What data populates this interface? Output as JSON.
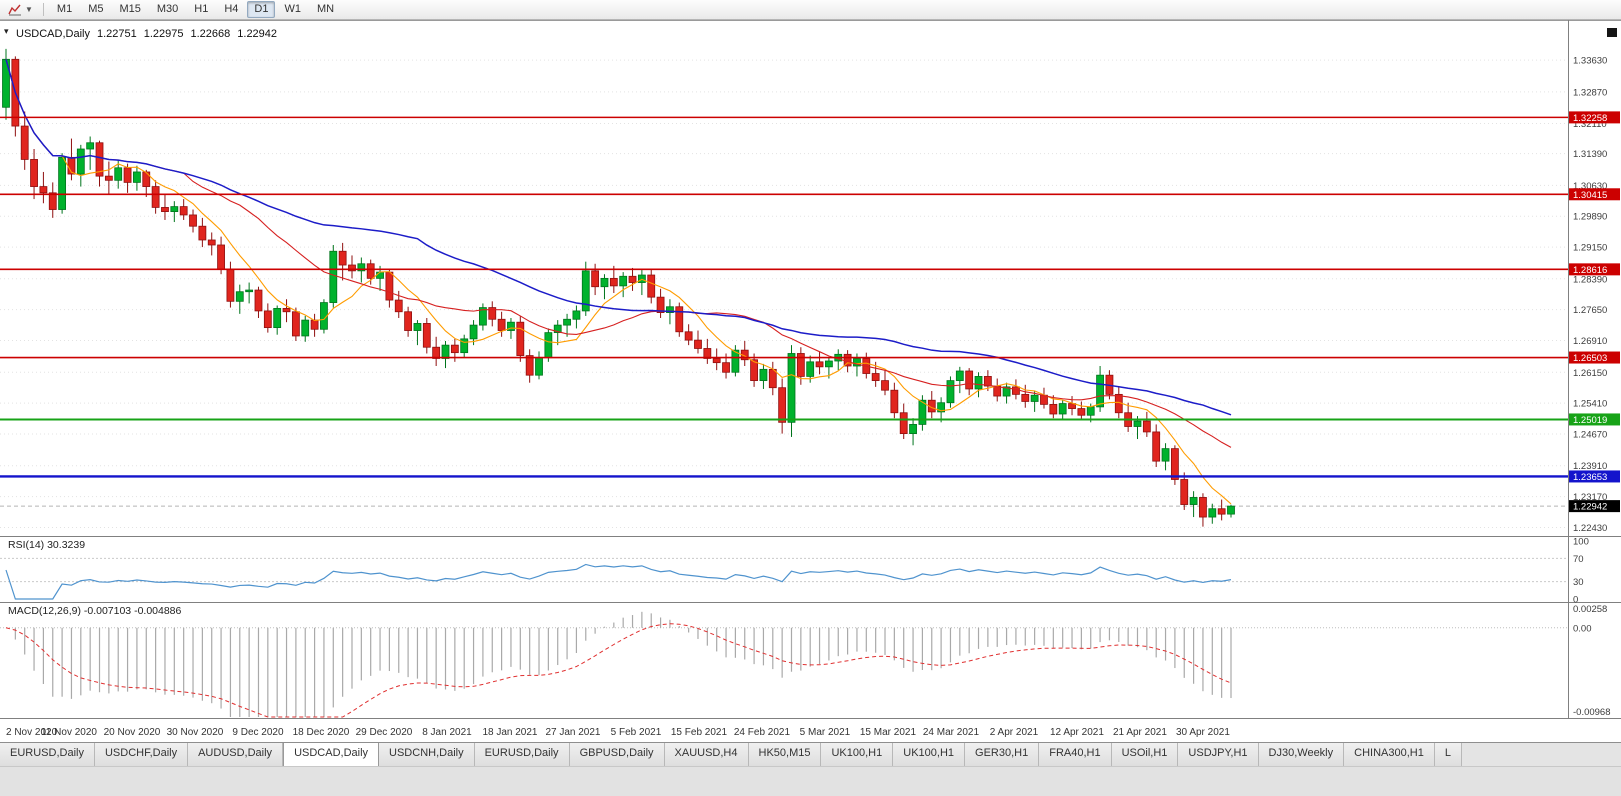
{
  "toolbar": {
    "timeframes": [
      "M1",
      "M5",
      "M15",
      "M30",
      "H1",
      "H4",
      "D1",
      "W1",
      "MN"
    ],
    "active": "D1"
  },
  "chart": {
    "symbol_title": "USDCAD,Daily",
    "ohlc": {
      "open": "1.22751",
      "high": "1.22975",
      "low": "1.22668",
      "close": "1.22942"
    }
  },
  "chart_data": {
    "type": "candlestick",
    "symbol": "USDCAD",
    "period": "Daily",
    "title": "USDCAD,Daily 1.22751 1.22975 1.22668 1.22942",
    "price_range": {
      "min": 1.2225,
      "max": 1.344
    },
    "y_ticks": [
      "1.33630",
      "1.32870",
      "1.32110",
      "1.31390",
      "1.30630",
      "1.29890",
      "1.29150",
      "1.28390",
      "1.27650",
      "1.26910",
      "1.26150",
      "1.25410",
      "1.24670",
      "1.23910",
      "1.23170",
      "1.22430"
    ],
    "x_labels": [
      "2 Nov 2020",
      "11 Nov 2020",
      "20 Nov 2020",
      "30 Nov 2020",
      "9 Dec 2020",
      "18 Dec 2020",
      "29 Dec 2020",
      "8 Jan 2021",
      "18 Jan 2021",
      "27 Jan 2021",
      "5 Feb 2021",
      "15 Feb 2021",
      "24 Feb 2021",
      "5 Mar 2021",
      "15 Mar 2021",
      "24 Mar 2021",
      "2 Apr 2021",
      "12 Apr 2021",
      "21 Apr 2021",
      "30 Apr 2021"
    ],
    "hlines": [
      {
        "price": 1.32258,
        "label": "1.32258",
        "color": "#cc0000",
        "width": 1.6
      },
      {
        "price": 1.30415,
        "label": "1.30415",
        "color": "#cc0000",
        "width": 1.6
      },
      {
        "price": 1.28616,
        "label": "1.28616",
        "color": "#cc0000",
        "width": 1.6
      },
      {
        "price": 1.26503,
        "label": "1.26503",
        "color": "#cc0000",
        "width": 1.6
      },
      {
        "price": 1.25019,
        "label": "1.25019",
        "color": "#17a317",
        "width": 2
      },
      {
        "price": 1.23653,
        "label": "1.23653",
        "color": "#1414cc",
        "width": 2.4
      }
    ],
    "current_price": {
      "value": 1.22942,
      "label": "1.22942"
    },
    "moving_averages": [
      {
        "name": "fast-ma",
        "period": 7,
        "color": "#ff9c00",
        "width": 1.1
      },
      {
        "name": "mid-ma",
        "period": 20,
        "color": "#d62020",
        "width": 1.1
      },
      {
        "name": "slow-ma",
        "period": 45,
        "color": "#1c1cc8",
        "width": 1.5
      }
    ],
    "indicators": [
      {
        "type": "rsi",
        "label": "RSI(14) 30.3239",
        "period": 14,
        "current": 30.3239,
        "levels": [
          100,
          70,
          30,
          0
        ],
        "color": "#4f93ce"
      },
      {
        "type": "macd",
        "label": "MACD(12,26,9) -0.007103 -0.004886",
        "fast": 12,
        "slow": 26,
        "signal": 9,
        "macd_value": -0.007103,
        "signal_value": -0.004886,
        "scale_labels": [
          "0.00258",
          "0.00",
          "-0.00968"
        ],
        "range": {
          "min": -0.00968,
          "max": 0.00258
        }
      }
    ],
    "colors": {
      "bull": "#00b22d",
      "bear": "#e0251e",
      "wick_bull": "#00741c",
      "wick_bear": "#8f0f0f",
      "grid": "#e3e3e3",
      "axis_text": "#3c3c3c",
      "macd_bar": "#a9a9a9",
      "macd_signal": "#e03030",
      "current_price_bg": "#000000",
      "current_price_line": "#b5b5b5"
    },
    "candles": [
      [
        1.325,
        1.339,
        1.322,
        1.3365
      ],
      [
        1.3365,
        1.3372,
        1.318,
        1.3205
      ],
      [
        1.3205,
        1.324,
        1.31,
        1.3125
      ],
      [
        1.3125,
        1.315,
        1.303,
        1.306
      ],
      [
        1.306,
        1.3095,
        1.302,
        1.3045
      ],
      [
        1.3045,
        1.307,
        1.2985,
        1.3005
      ],
      [
        1.3005,
        1.314,
        1.2995,
        1.313
      ],
      [
        1.313,
        1.3175,
        1.3075,
        1.309
      ],
      [
        1.309,
        1.316,
        1.306,
        1.315
      ],
      [
        1.315,
        1.318,
        1.31,
        1.3165
      ],
      [
        1.3165,
        1.317,
        1.306,
        1.3085
      ],
      [
        1.3085,
        1.312,
        1.304,
        1.3075
      ],
      [
        1.3075,
        1.3125,
        1.3055,
        1.3105
      ],
      [
        1.3105,
        1.3115,
        1.3045,
        1.307
      ],
      [
        1.307,
        1.311,
        1.305,
        1.3095
      ],
      [
        1.3095,
        1.31,
        1.3035,
        1.306
      ],
      [
        1.306,
        1.3075,
        1.2995,
        1.301
      ],
      [
        1.301,
        1.304,
        1.298,
        1.3
      ],
      [
        1.3,
        1.3025,
        1.2975,
        1.3012
      ],
      [
        1.3012,
        1.303,
        1.298,
        1.2992
      ],
      [
        1.2992,
        1.3005,
        1.295,
        1.2965
      ],
      [
        1.2965,
        1.2985,
        1.2915,
        1.2932
      ],
      [
        1.2932,
        1.295,
        1.2895,
        1.292
      ],
      [
        1.292,
        1.294,
        1.285,
        1.2862
      ],
      [
        1.2862,
        1.288,
        1.277,
        1.2785
      ],
      [
        1.2785,
        1.2825,
        1.2755,
        1.2808
      ],
      [
        1.2808,
        1.283,
        1.278,
        1.2812
      ],
      [
        1.2812,
        1.282,
        1.2745,
        1.2762
      ],
      [
        1.2762,
        1.278,
        1.271,
        1.2722
      ],
      [
        1.2722,
        1.2775,
        1.2705,
        1.2768
      ],
      [
        1.2768,
        1.279,
        1.2735,
        1.276
      ],
      [
        1.276,
        1.277,
        1.269,
        1.2702
      ],
      [
        1.2702,
        1.275,
        1.2688,
        1.274
      ],
      [
        1.274,
        1.2755,
        1.27,
        1.2718
      ],
      [
        1.2718,
        1.279,
        1.2708,
        1.2782
      ],
      [
        1.2782,
        1.292,
        1.277,
        1.2905
      ],
      [
        1.2905,
        1.2925,
        1.2835,
        1.2872
      ],
      [
        1.2872,
        1.2895,
        1.284,
        1.2858
      ],
      [
        1.2858,
        1.289,
        1.283,
        1.2875
      ],
      [
        1.2875,
        1.2885,
        1.2825,
        1.284
      ],
      [
        1.284,
        1.287,
        1.281,
        1.2855
      ],
      [
        1.2855,
        1.2862,
        1.277,
        1.2788
      ],
      [
        1.2788,
        1.281,
        1.2745,
        1.276
      ],
      [
        1.276,
        1.2772,
        1.27,
        1.2715
      ],
      [
        1.2715,
        1.274,
        1.268,
        1.2732
      ],
      [
        1.2732,
        1.2745,
        1.266,
        1.2675
      ],
      [
        1.2675,
        1.27,
        1.263,
        1.2648
      ],
      [
        1.2648,
        1.269,
        1.2625,
        1.268
      ],
      [
        1.268,
        1.2695,
        1.264,
        1.2662
      ],
      [
        1.2662,
        1.2705,
        1.265,
        1.2695
      ],
      [
        1.2695,
        1.274,
        1.268,
        1.2728
      ],
      [
        1.2728,
        1.278,
        1.2715,
        1.277
      ],
      [
        1.277,
        1.2785,
        1.2725,
        1.2742
      ],
      [
        1.2742,
        1.276,
        1.27,
        1.2715
      ],
      [
        1.2715,
        1.2745,
        1.2695,
        1.2735
      ],
      [
        1.2735,
        1.275,
        1.264,
        1.2655
      ],
      [
        1.2655,
        1.267,
        1.259,
        1.2608
      ],
      [
        1.2608,
        1.2665,
        1.2598,
        1.265
      ],
      [
        1.265,
        1.272,
        1.264,
        1.271
      ],
      [
        1.271,
        1.274,
        1.268,
        1.2728
      ],
      [
        1.2728,
        1.2755,
        1.27,
        1.2742
      ],
      [
        1.2742,
        1.2775,
        1.272,
        1.2762
      ],
      [
        1.2762,
        1.288,
        1.275,
        1.2858
      ],
      [
        1.2858,
        1.2875,
        1.28,
        1.282
      ],
      [
        1.282,
        1.285,
        1.279,
        1.284
      ],
      [
        1.284,
        1.287,
        1.2805,
        1.2822
      ],
      [
        1.2822,
        1.2855,
        1.2795,
        1.2845
      ],
      [
        1.2845,
        1.2865,
        1.281,
        1.283
      ],
      [
        1.283,
        1.286,
        1.28,
        1.2848
      ],
      [
        1.2848,
        1.2862,
        1.278,
        1.2795
      ],
      [
        1.2795,
        1.2815,
        1.2745,
        1.2758
      ],
      [
        1.2758,
        1.279,
        1.273,
        1.2772
      ],
      [
        1.2772,
        1.2782,
        1.27,
        1.2712
      ],
      [
        1.2712,
        1.273,
        1.268,
        1.2692
      ],
      [
        1.2692,
        1.2715,
        1.266,
        1.2672
      ],
      [
        1.2672,
        1.2695,
        1.2635,
        1.2648
      ],
      [
        1.2648,
        1.2672,
        1.262,
        1.2638
      ],
      [
        1.2638,
        1.266,
        1.26,
        1.2615
      ],
      [
        1.2615,
        1.268,
        1.2605,
        1.2668
      ],
      [
        1.2668,
        1.269,
        1.263,
        1.2645
      ],
      [
        1.2645,
        1.266,
        1.258,
        1.2595
      ],
      [
        1.2595,
        1.2635,
        1.2575,
        1.2622
      ],
      [
        1.2622,
        1.264,
        1.256,
        1.2578
      ],
      [
        1.2578,
        1.26,
        1.2468,
        1.2495
      ],
      [
        1.2495,
        1.268,
        1.246,
        1.266
      ],
      [
        1.266,
        1.2675,
        1.2585,
        1.2605
      ],
      [
        1.2605,
        1.2655,
        1.259,
        1.264
      ],
      [
        1.264,
        1.2665,
        1.261,
        1.2628
      ],
      [
        1.2628,
        1.265,
        1.26,
        1.2642
      ],
      [
        1.2642,
        1.267,
        1.262,
        1.2658
      ],
      [
        1.2658,
        1.2668,
        1.2615,
        1.263
      ],
      [
        1.263,
        1.266,
        1.2605,
        1.2648
      ],
      [
        1.2648,
        1.2662,
        1.26,
        1.2612
      ],
      [
        1.2612,
        1.264,
        1.258,
        1.2595
      ],
      [
        1.2595,
        1.262,
        1.256,
        1.2572
      ],
      [
        1.2572,
        1.259,
        1.2505,
        1.2518
      ],
      [
        1.2518,
        1.254,
        1.2455,
        1.2468
      ],
      [
        1.2468,
        1.2505,
        1.244,
        1.249
      ],
      [
        1.249,
        1.256,
        1.2475,
        1.2548
      ],
      [
        1.2548,
        1.257,
        1.2505,
        1.252
      ],
      [
        1.252,
        1.2555,
        1.2495,
        1.2542
      ],
      [
        1.2542,
        1.2605,
        1.253,
        1.2595
      ],
      [
        1.2595,
        1.2628,
        1.2565,
        1.2618
      ],
      [
        1.2618,
        1.2625,
        1.256,
        1.2575
      ],
      [
        1.2575,
        1.2615,
        1.2555,
        1.2605
      ],
      [
        1.2605,
        1.262,
        1.257,
        1.2582
      ],
      [
        1.2582,
        1.26,
        1.2545,
        1.2558
      ],
      [
        1.2558,
        1.259,
        1.254,
        1.258
      ],
      [
        1.258,
        1.2598,
        1.255,
        1.2562
      ],
      [
        1.2562,
        1.2585,
        1.253,
        1.2545
      ],
      [
        1.2545,
        1.257,
        1.252,
        1.256
      ],
      [
        1.256,
        1.2578,
        1.2528,
        1.2538
      ],
      [
        1.2538,
        1.256,
        1.2505,
        1.2515
      ],
      [
        1.2515,
        1.2548,
        1.25,
        1.254
      ],
      [
        1.254,
        1.2558,
        1.2512,
        1.2528
      ],
      [
        1.2528,
        1.2545,
        1.25,
        1.2512
      ],
      [
        1.2512,
        1.254,
        1.2495,
        1.2532
      ],
      [
        1.2532,
        1.263,
        1.252,
        1.2608
      ],
      [
        1.2608,
        1.262,
        1.255,
        1.2562
      ],
      [
        1.2562,
        1.258,
        1.2505,
        1.2518
      ],
      [
        1.2518,
        1.2542,
        1.2472,
        1.2485
      ],
      [
        1.2485,
        1.251,
        1.2455,
        1.2498
      ],
      [
        1.2498,
        1.252,
        1.246,
        1.2472
      ],
      [
        1.2472,
        1.249,
        1.2388,
        1.2402
      ],
      [
        1.2402,
        1.2445,
        1.238,
        1.2432
      ],
      [
        1.2432,
        1.244,
        1.2345,
        1.2358
      ],
      [
        1.2358,
        1.2375,
        1.2285,
        1.2298
      ],
      [
        1.2298,
        1.233,
        1.2268,
        1.2315
      ],
      [
        1.2315,
        1.2325,
        1.2245,
        1.2268
      ],
      [
        1.2268,
        1.23,
        1.2252,
        1.2288
      ],
      [
        1.2288,
        1.231,
        1.226,
        1.2275
      ],
      [
        1.22751,
        1.22975,
        1.22668,
        1.22942
      ]
    ]
  },
  "tabs": {
    "items": [
      "EURUSD,Daily",
      "USDCHF,Daily",
      "AUDUSD,Daily",
      "USDCAD,Daily",
      "USDCNH,Daily",
      "EURUSD,Daily",
      "GBPUSD,Daily",
      "XAUUSD,H4",
      "HK50,M15",
      "UK100,H1",
      "UK100,H1",
      "GER30,H1",
      "FRA40,H1",
      "USOil,H1",
      "USDJPY,H1",
      "DJ30,Weekly",
      "CHINA300,H1",
      "L"
    ],
    "active_index": 3
  }
}
